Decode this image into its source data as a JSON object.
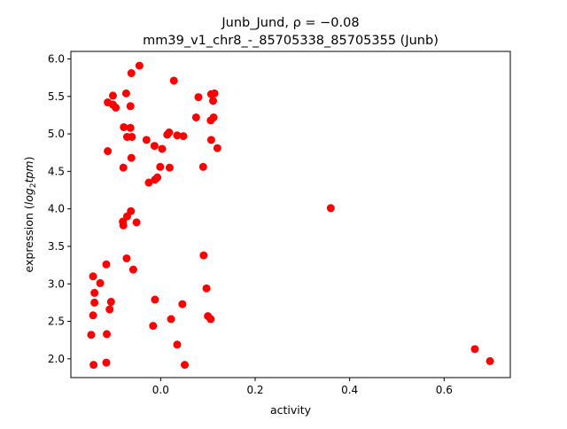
{
  "chart_data": {
    "type": "scatter",
    "title_line1": "Junb_Jund, ρ = −0.08",
    "title_line2": "mm39_v1_chr8_-_85705338_85705355 (Junb)",
    "xlabel": "activity",
    "ylabel_prefix": "expression (",
    "ylabel_italic_base": "log",
    "ylabel_sub": "2",
    "ylabel_italic_tail": "tpm",
    "ylabel_suffix": ")",
    "xlim": [
      -0.19,
      0.74
    ],
    "ylim": [
      1.75,
      6.1
    ],
    "x_ticks": [
      0.0,
      0.2,
      0.4,
      0.6
    ],
    "x_tick_labels": [
      "0.0",
      "0.2",
      "0.4",
      "0.6"
    ],
    "y_ticks": [
      2.0,
      2.5,
      3.0,
      3.5,
      4.0,
      4.5,
      5.0,
      5.5,
      6.0
    ],
    "y_tick_labels": [
      "2.0",
      "2.5",
      "3.0",
      "3.5",
      "4.0",
      "4.5",
      "5.0",
      "5.5",
      "6.0"
    ],
    "grid": false,
    "marker_color": "#ff0000",
    "points": [
      [
        -0.045,
        5.91
      ],
      [
        -0.062,
        5.81
      ],
      [
        0.028,
        5.71
      ],
      [
        -0.101,
        5.51
      ],
      [
        -0.073,
        5.54
      ],
      [
        -0.112,
        5.42
      ],
      [
        -0.101,
        5.39
      ],
      [
        -0.095,
        5.35
      ],
      [
        -0.064,
        5.37
      ],
      [
        0.08,
        5.49
      ],
      [
        0.107,
        5.53
      ],
      [
        0.114,
        5.54
      ],
      [
        0.111,
        5.44
      ],
      [
        0.106,
        5.18
      ],
      [
        0.112,
        5.22
      ],
      [
        0.075,
        5.22
      ],
      [
        -0.078,
        5.09
      ],
      [
        -0.064,
        5.08
      ],
      [
        -0.071,
        4.96
      ],
      [
        -0.061,
        4.96
      ],
      [
        -0.03,
        4.92
      ],
      [
        -0.013,
        4.84
      ],
      [
        0.003,
        4.8
      ],
      [
        0.014,
        4.99
      ],
      [
        0.018,
        5.02
      ],
      [
        0.035,
        4.98
      ],
      [
        0.048,
        4.97
      ],
      [
        0.107,
        4.92
      ],
      [
        0.12,
        4.81
      ],
      [
        -0.112,
        4.77
      ],
      [
        -0.062,
        4.68
      ],
      [
        -0.079,
        4.55
      ],
      [
        -0.001,
        4.56
      ],
      [
        0.019,
        4.55
      ],
      [
        0.09,
        4.56
      ],
      [
        -0.007,
        4.42
      ],
      [
        -0.012,
        4.39
      ],
      [
        -0.025,
        4.35
      ],
      [
        0.36,
        4.01
      ],
      [
        -0.063,
        3.97
      ],
      [
        -0.071,
        3.9
      ],
      [
        -0.08,
        3.83
      ],
      [
        -0.079,
        3.78
      ],
      [
        -0.051,
        3.82
      ],
      [
        -0.072,
        3.34
      ],
      [
        -0.058,
        3.19
      ],
      [
        0.091,
        3.38
      ],
      [
        -0.115,
        3.26
      ],
      [
        -0.143,
        3.1
      ],
      [
        -0.128,
        3.01
      ],
      [
        -0.14,
        2.88
      ],
      [
        -0.14,
        2.75
      ],
      [
        -0.105,
        2.76
      ],
      [
        -0.108,
        2.66
      ],
      [
        -0.143,
        2.58
      ],
      [
        -0.147,
        2.32
      ],
      [
        -0.114,
        2.33
      ],
      [
        -0.012,
        2.79
      ],
      [
        0.046,
        2.73
      ],
      [
        0.097,
        2.94
      ],
      [
        0.022,
        2.53
      ],
      [
        0.1,
        2.57
      ],
      [
        0.106,
        2.53
      ],
      [
        -0.016,
        2.44
      ],
      [
        0.035,
        2.19
      ],
      [
        -0.142,
        1.92
      ],
      [
        -0.115,
        1.95
      ],
      [
        0.051,
        1.92
      ],
      [
        0.665,
        2.13
      ],
      [
        0.697,
        1.97
      ]
    ]
  }
}
